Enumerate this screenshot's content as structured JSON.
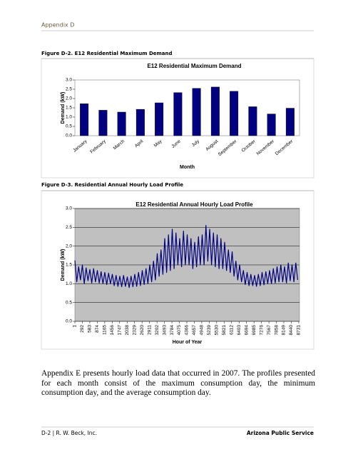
{
  "header": {
    "section": "Appendix D"
  },
  "captions": [
    "Figure D-2. E12 Residential Maximum Demand",
    "Figure D-3. Residential Annual Hourly Load Profile"
  ],
  "chart_data": [
    {
      "type": "bar",
      "title": "E12 Residential Maximum Demand",
      "x_label": "Month",
      "y_label": "Demand (kW)",
      "categories": [
        "January",
        "February",
        "March",
        "April",
        "May",
        "June",
        "July",
        "August",
        "September",
        "October",
        "November",
        "December"
      ],
      "values": [
        1.72,
        1.37,
        1.27,
        1.42,
        1.77,
        2.32,
        2.55,
        2.62,
        2.39,
        1.56,
        1.17,
        1.48
      ],
      "color": "#000080",
      "ylim": [
        0,
        3
      ],
      "yticks": [
        {
          "value": 0,
          "label": "0.0"
        },
        {
          "value": 0.5,
          "label": "0.5"
        },
        {
          "value": 1,
          "label": "1.0"
        },
        {
          "value": 1.5,
          "label": "1.5"
        },
        {
          "value": 2,
          "label": "2.0"
        },
        {
          "value": 2.5,
          "label": "2.5"
        },
        {
          "value": 3,
          "label": "3.0"
        }
      ],
      "grid": false
    },
    {
      "type": "line",
      "title": "E12 Residential Annual Hourly Load Profile",
      "x_label": "Hour of Year",
      "y_label": "Demand (kW)",
      "x": [
        1,
        74,
        147,
        220,
        293,
        366,
        439,
        512,
        585,
        658,
        731,
        804,
        877,
        950,
        1023,
        1096,
        1169,
        1242,
        1315,
        1388,
        1461,
        1534,
        1607,
        1680,
        1753,
        1826,
        1899,
        1972,
        2045,
        2118,
        2191,
        2264,
        2337,
        2410,
        2483,
        2556,
        2629,
        2702,
        2775,
        2848,
        2921,
        2994,
        3067,
        3140,
        3213,
        3286,
        3359,
        3432,
        3505,
        3578,
        3651,
        3724,
        3797,
        3870,
        3943,
        4016,
        4089,
        4162,
        4235,
        4308,
        4381,
        4454,
        4527,
        4600,
        4673,
        4746,
        4819,
        4892,
        4965,
        5038,
        5111,
        5184,
        5257,
        5330,
        5403,
        5476,
        5549,
        5622,
        5695,
        5768,
        5841,
        5914,
        5987,
        6060,
        6133,
        6206,
        6279,
        6352,
        6425,
        6498,
        6571,
        6644,
        6717,
        6790,
        6863,
        6936,
        7009,
        7082,
        7155,
        7228,
        7301,
        7374,
        7447,
        7520,
        7593,
        7666,
        7739,
        7812,
        7885,
        7958,
        8031,
        8104,
        8177,
        8250,
        8323,
        8396,
        8469,
        8542,
        8615,
        8688
      ],
      "series": [
        {
          "color": "#000080",
          "values": [
            1.62,
            1.05,
            1.45,
            1.1,
            1.5,
            1.0,
            1.42,
            1.08,
            1.38,
            1.02,
            1.4,
            1.05,
            1.35,
            1.02,
            1.32,
            1.0,
            1.3,
            0.98,
            1.28,
            1.0,
            1.25,
            0.95,
            1.22,
            0.93,
            1.2,
            0.92,
            1.22,
            0.93,
            1.18,
            0.9,
            1.2,
            0.92,
            1.25,
            0.93,
            1.3,
            0.95,
            1.35,
            0.98,
            1.4,
            1.0,
            1.5,
            1.05,
            1.6,
            1.1,
            1.8,
            1.2,
            1.9,
            1.25,
            2.2,
            1.3,
            2.3,
            1.35,
            2.45,
            1.4,
            2.35,
            1.5,
            2.2,
            1.45,
            2.4,
            1.5,
            2.3,
            1.5,
            2.2,
            1.4,
            2.1,
            1.45,
            2.25,
            1.5,
            2.3,
            1.5,
            2.55,
            1.6,
            2.45,
            1.5,
            2.35,
            1.45,
            2.3,
            1.4,
            2.2,
            1.4,
            2.1,
            1.35,
            1.9,
            1.3,
            1.85,
            1.2,
            1.6,
            1.1,
            1.5,
            1.05,
            1.35,
            0.98,
            1.3,
            0.95,
            1.25,
            0.95,
            1.22,
            0.93,
            1.25,
            0.95,
            1.3,
            0.97,
            1.32,
            1.0,
            1.35,
            1.0,
            1.4,
            1.02,
            1.45,
            1.05,
            1.5,
            1.05,
            1.45,
            1.02,
            1.55,
            1.08,
            1.5,
            1.05,
            1.55,
            1.1
          ]
        }
      ],
      "xlim": [
        1,
        8760
      ],
      "xticks": [
        1,
        292,
        583,
        874,
        1165,
        1456,
        1747,
        2038,
        2329,
        2620,
        2911,
        3202,
        3493,
        3784,
        4075,
        4366,
        4657,
        4948,
        5239,
        5530,
        5821,
        6112,
        6403,
        6694,
        6985,
        7276,
        7567,
        7858,
        8149,
        8440,
        8731
      ],
      "ylim": [
        0,
        3
      ],
      "yticks": [
        {
          "value": 0,
          "label": "0.0"
        },
        {
          "value": 0.5,
          "label": "0.5"
        },
        {
          "value": 1,
          "label": "1.0"
        },
        {
          "value": 1.5,
          "label": "1.5"
        },
        {
          "value": 2,
          "label": "2.0"
        },
        {
          "value": 2.5,
          "label": "2.5"
        },
        {
          "value": 3,
          "label": "3.0"
        }
      ],
      "grid": true
    }
  ],
  "paragraph": "Appendix E presents hourly load data that occurred in 2007.  The profiles presented for each month consist of the maximum consumption day, the minimum consumption day, and the average consumption day.",
  "footer": {
    "left": "D-2  |  R. W. Beck, Inc.",
    "right": "Arizona Public Service"
  }
}
